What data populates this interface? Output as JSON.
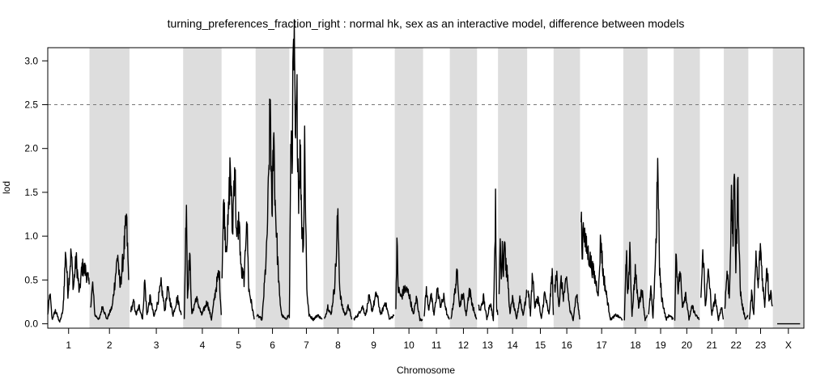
{
  "chart_data": {
    "type": "line",
    "title": "turning_preferences_fraction_right : normal hk, sex as an interactive model, difference between models",
    "xlabel": "Chromosome",
    "ylabel": "lod",
    "ylim": [
      -0.05,
      3.15
    ],
    "y_ticks": [
      0.0,
      0.5,
      1.0,
      1.5,
      2.0,
      2.5,
      3.0
    ],
    "y_tick_labels": [
      "0.0",
      "0.5",
      "1.0",
      "1.5",
      "2.0",
      "2.5",
      "3.0"
    ],
    "threshold": 2.5,
    "grid": false,
    "alternate_shading": true,
    "shading_color": "#dddddd",
    "line_color": "#000000",
    "threshold_color": "#777777",
    "chromosomes": [
      {
        "name": "1",
        "start": 0,
        "end": 76.5,
        "shaded": false,
        "peaks": [
          [
            0,
            0.1
          ],
          [
            4,
            0.35
          ],
          [
            8,
            0.05
          ],
          [
            14,
            0.15
          ],
          [
            22,
            0.02
          ],
          [
            28,
            0.15
          ],
          [
            33,
            0.85
          ],
          [
            37,
            0.35
          ],
          [
            43,
            0.82
          ],
          [
            47,
            0.4
          ],
          [
            52,
            0.75
          ],
          [
            58,
            0.35
          ],
          [
            63,
            0.65
          ],
          [
            70,
            0.6
          ],
          [
            76,
            0.45
          ]
        ]
      },
      {
        "name": "2",
        "start": 76.5,
        "end": 150,
        "shaded": true,
        "peaks": [
          [
            2,
            0.2
          ],
          [
            6,
            0.45
          ],
          [
            10,
            0.1
          ],
          [
            18,
            0.05
          ],
          [
            24,
            0.2
          ],
          [
            32,
            0.05
          ],
          [
            42,
            0.2
          ],
          [
            52,
            0.8
          ],
          [
            56,
            0.4
          ],
          [
            62,
            0.75
          ],
          [
            68,
            1.18
          ],
          [
            72,
            0.5
          ]
        ]
      },
      {
        "name": "3",
        "start": 150,
        "end": 248.5,
        "shaded": false,
        "peaks": [
          [
            2,
            0.15
          ],
          [
            8,
            0.25
          ],
          [
            12,
            0.1
          ],
          [
            18,
            0.2
          ],
          [
            24,
            0.05
          ],
          [
            28,
            0.5
          ],
          [
            32,
            0.1
          ],
          [
            38,
            0.3
          ],
          [
            45,
            0.08
          ],
          [
            52,
            0.25
          ],
          [
            58,
            0.45
          ],
          [
            65,
            0.15
          ],
          [
            70,
            0.4
          ],
          [
            80,
            0.1
          ],
          [
            88,
            0.3
          ],
          [
            95,
            0.1
          ]
        ]
      },
      {
        "name": "4",
        "start": 248.5,
        "end": 319,
        "shaded": true,
        "peaks": [
          [
            2,
            0.05
          ],
          [
            6,
            1.47
          ],
          [
            8,
            0.3
          ],
          [
            12,
            0.8
          ],
          [
            16,
            0.1
          ],
          [
            24,
            0.3
          ],
          [
            34,
            0.1
          ],
          [
            44,
            0.25
          ],
          [
            52,
            0.05
          ],
          [
            60,
            0.4
          ],
          [
            66,
            0.6
          ],
          [
            70,
            0.1
          ]
        ]
      },
      {
        "name": "5",
        "start": 319,
        "end": 381.5,
        "shaded": false,
        "peaks": [
          [
            1,
            0.6
          ],
          [
            4,
            1.4
          ],
          [
            8,
            0.9
          ],
          [
            12,
            1.1
          ],
          [
            16,
            1.85
          ],
          [
            20,
            1.0
          ],
          [
            24,
            1.9
          ],
          [
            28,
            0.9
          ],
          [
            32,
            1.2
          ],
          [
            36,
            0.6
          ],
          [
            42,
            0.5
          ],
          [
            46,
            1.3
          ],
          [
            50,
            0.4
          ],
          [
            56,
            0.2
          ],
          [
            60,
            0.05
          ]
        ]
      },
      {
        "name": "6",
        "start": 381.5,
        "end": 443.5,
        "shaded": true,
        "peaks": [
          [
            2,
            0.1
          ],
          [
            12,
            0.05
          ],
          [
            20,
            0.8
          ],
          [
            24,
            1.6
          ],
          [
            27,
            2.59
          ],
          [
            30,
            1.1
          ],
          [
            33,
            2.3
          ],
          [
            36,
            1.4
          ],
          [
            40,
            0.8
          ],
          [
            44,
            0.3
          ],
          [
            48,
            0.1
          ],
          [
            55,
            0.05
          ],
          [
            61,
            0.1
          ]
        ]
      },
      {
        "name": "7",
        "start": 443.5,
        "end": 506,
        "shaded": false,
        "peaks": [
          [
            0,
            0.06
          ],
          [
            3,
            2.2
          ],
          [
            5,
            1.9
          ],
          [
            7,
            2.9
          ],
          [
            9,
            3.03
          ],
          [
            11,
            2.0
          ],
          [
            14,
            2.5
          ],
          [
            17,
            1.5
          ],
          [
            20,
            2.0
          ],
          [
            23,
            1.1
          ],
          [
            26,
            0.9
          ],
          [
            28,
            2.12
          ],
          [
            32,
            0.4
          ],
          [
            36,
            0.1
          ],
          [
            44,
            0.05
          ],
          [
            52,
            0.1
          ],
          [
            60,
            0.05
          ]
        ]
      },
      {
        "name": "8",
        "start": 506,
        "end": 559.5,
        "shaded": true,
        "peaks": [
          [
            2,
            0.05
          ],
          [
            8,
            0.2
          ],
          [
            14,
            0.1
          ],
          [
            20,
            0.4
          ],
          [
            24,
            0.8
          ],
          [
            26,
            1.25
          ],
          [
            28,
            0.9
          ],
          [
            30,
            0.4
          ],
          [
            34,
            0.2
          ],
          [
            40,
            0.1
          ],
          [
            46,
            0.2
          ],
          [
            52,
            0.05
          ]
        ]
      },
      {
        "name": "9",
        "start": 559.5,
        "end": 637,
        "shaded": false,
        "peaks": [
          [
            2,
            0.05
          ],
          [
            10,
            0.1
          ],
          [
            18,
            0.2
          ],
          [
            24,
            0.1
          ],
          [
            30,
            0.3
          ],
          [
            36,
            0.15
          ],
          [
            44,
            0.35
          ],
          [
            52,
            0.1
          ],
          [
            60,
            0.25
          ],
          [
            68,
            0.05
          ],
          [
            76,
            0.1
          ]
        ]
      },
      {
        "name": "10",
        "start": 637,
        "end": 689,
        "shaded": true,
        "peaks": [
          [
            2,
            0.2
          ],
          [
            4,
            0.96
          ],
          [
            6,
            0.4
          ],
          [
            12,
            0.3
          ],
          [
            18,
            0.4
          ],
          [
            26,
            0.35
          ],
          [
            34,
            0.1
          ],
          [
            40,
            0.3
          ],
          [
            46,
            0.05
          ],
          [
            51,
            0.05
          ]
        ]
      },
      {
        "name": "11",
        "start": 689,
        "end": 738,
        "shaded": false,
        "peaks": [
          [
            2,
            0.1
          ],
          [
            6,
            0.4
          ],
          [
            10,
            0.15
          ],
          [
            14,
            0.35
          ],
          [
            20,
            0.1
          ],
          [
            26,
            0.4
          ],
          [
            32,
            0.2
          ],
          [
            38,
            0.3
          ],
          [
            44,
            0.1
          ],
          [
            48,
            0.05
          ]
        ]
      },
      {
        "name": "12",
        "start": 738,
        "end": 788,
        "shaded": true,
        "peaks": [
          [
            2,
            0.05
          ],
          [
            8,
            0.3
          ],
          [
            14,
            0.6
          ],
          [
            18,
            0.2
          ],
          [
            24,
            0.35
          ],
          [
            30,
            0.1
          ],
          [
            36,
            0.4
          ],
          [
            42,
            0.2
          ],
          [
            49,
            0.05
          ]
        ]
      },
      {
        "name": "13",
        "start": 788,
        "end": 826.5,
        "shaded": false,
        "peaks": [
          [
            2,
            0.2
          ],
          [
            6,
            0.15
          ],
          [
            12,
            0.3
          ],
          [
            18,
            0.05
          ],
          [
            24,
            0.25
          ],
          [
            30,
            0.05
          ],
          [
            34,
            1.33
          ],
          [
            36,
            0.2
          ],
          [
            38,
            0.1
          ]
        ]
      },
      {
        "name": "14",
        "start": 826.5,
        "end": 880,
        "shaded": true,
        "peaks": [
          [
            2,
            0.3
          ],
          [
            4,
            1.0
          ],
          [
            6,
            0.5
          ],
          [
            8,
            0.95
          ],
          [
            10,
            0.6
          ],
          [
            12,
            1.05
          ],
          [
            14,
            0.7
          ],
          [
            18,
            0.5
          ],
          [
            22,
            0.1
          ],
          [
            26,
            0.3
          ],
          [
            34,
            0.05
          ],
          [
            40,
            0.3
          ],
          [
            46,
            0.1
          ],
          [
            53,
            0.35
          ]
        ]
      },
      {
        "name": "15",
        "start": 880,
        "end": 928.5,
        "shaded": false,
        "peaks": [
          [
            2,
            0.4
          ],
          [
            6,
            0.1
          ],
          [
            10,
            0.6
          ],
          [
            14,
            0.2
          ],
          [
            20,
            0.3
          ],
          [
            26,
            0.05
          ],
          [
            32,
            0.35
          ],
          [
            40,
            0.1
          ],
          [
            46,
            0.6
          ],
          [
            48,
            0.1
          ]
        ]
      },
      {
        "name": "16",
        "start": 928.5,
        "end": 977,
        "shaded": true,
        "peaks": [
          [
            2,
            0.4
          ],
          [
            6,
            0.55
          ],
          [
            10,
            0.2
          ],
          [
            14,
            0.5
          ],
          [
            18,
            0.3
          ],
          [
            24,
            0.5
          ],
          [
            30,
            0.15
          ],
          [
            36,
            0.05
          ],
          [
            42,
            0.35
          ],
          [
            48,
            0.05
          ]
        ]
      },
      {
        "name": "17",
        "start": 977,
        "end": 1056.5,
        "shaded": false,
        "peaks": [
          [
            2,
            1.4
          ],
          [
            4,
            0.7
          ],
          [
            6,
            1.2
          ],
          [
            10,
            0.9
          ],
          [
            20,
            0.7
          ],
          [
            34,
            0.35
          ],
          [
            38,
            1.0
          ],
          [
            42,
            0.6
          ],
          [
            48,
            0.35
          ],
          [
            56,
            0.05
          ],
          [
            66,
            0.1
          ],
          [
            78,
            0.05
          ]
        ]
      },
      {
        "name": "18",
        "start": 1056.5,
        "end": 1101,
        "shaded": true,
        "peaks": [
          [
            2,
            0.05
          ],
          [
            6,
            0.85
          ],
          [
            8,
            0.3
          ],
          [
            12,
            0.8
          ],
          [
            16,
            0.1
          ],
          [
            22,
            0.6
          ],
          [
            28,
            0.2
          ],
          [
            34,
            0.4
          ],
          [
            40,
            0.05
          ],
          [
            44,
            0.1
          ]
        ]
      },
      {
        "name": "19",
        "start": 1101,
        "end": 1149,
        "shaded": false,
        "peaks": [
          [
            2,
            0.1
          ],
          [
            6,
            0.4
          ],
          [
            10,
            0.05
          ],
          [
            16,
            1.0
          ],
          [
            18,
            1.68
          ],
          [
            20,
            1.5
          ],
          [
            22,
            0.6
          ],
          [
            26,
            0.3
          ],
          [
            34,
            0.05
          ],
          [
            40,
            0.1
          ],
          [
            47,
            0.05
          ]
        ]
      },
      {
        "name": "20",
        "start": 1149,
        "end": 1197,
        "shaded": true,
        "peaks": [
          [
            2,
            0.05
          ],
          [
            4,
            0.8
          ],
          [
            8,
            0.4
          ],
          [
            12,
            0.6
          ],
          [
            16,
            0.2
          ],
          [
            22,
            0.35
          ],
          [
            28,
            0.05
          ],
          [
            34,
            0.2
          ],
          [
            40,
            0.1
          ],
          [
            47,
            0.05
          ]
        ]
      },
      {
        "name": "21",
        "start": 1197,
        "end": 1241,
        "shaded": false,
        "peaks": [
          [
            2,
            0.3
          ],
          [
            6,
            0.85
          ],
          [
            10,
            0.2
          ],
          [
            16,
            0.6
          ],
          [
            22,
            0.1
          ],
          [
            28,
            0.3
          ],
          [
            34,
            0.05
          ],
          [
            40,
            0.2
          ],
          [
            43,
            0.05
          ]
        ]
      },
      {
        "name": "22",
        "start": 1241,
        "end": 1286,
        "shaded": true,
        "peaks": [
          [
            2,
            0.2
          ],
          [
            6,
            0.6
          ],
          [
            10,
            0.3
          ],
          [
            14,
            1.35
          ],
          [
            17,
            1.0
          ],
          [
            20,
            1.78
          ],
          [
            22,
            0.6
          ],
          [
            26,
            1.6
          ],
          [
            30,
            0.4
          ],
          [
            34,
            0.2
          ],
          [
            40,
            0.05
          ],
          [
            44,
            0.1
          ]
        ]
      },
      {
        "name": "23",
        "start": 1286,
        "end": 1331,
        "shaded": false,
        "peaks": [
          [
            2,
            0.05
          ],
          [
            6,
            0.35
          ],
          [
            10,
            0.1
          ],
          [
            14,
            0.78
          ],
          [
            18,
            0.4
          ],
          [
            22,
            0.9
          ],
          [
            26,
            0.5
          ],
          [
            30,
            0.2
          ],
          [
            34,
            0.7
          ],
          [
            38,
            0.3
          ],
          [
            42,
            0.35
          ],
          [
            44,
            0.2
          ]
        ]
      },
      {
        "name": "X",
        "start": 1331,
        "end": 1388,
        "shaded": true,
        "peaks": [
          [
            8,
            0.0
          ],
          [
            50,
            0.0
          ]
        ]
      }
    ]
  }
}
